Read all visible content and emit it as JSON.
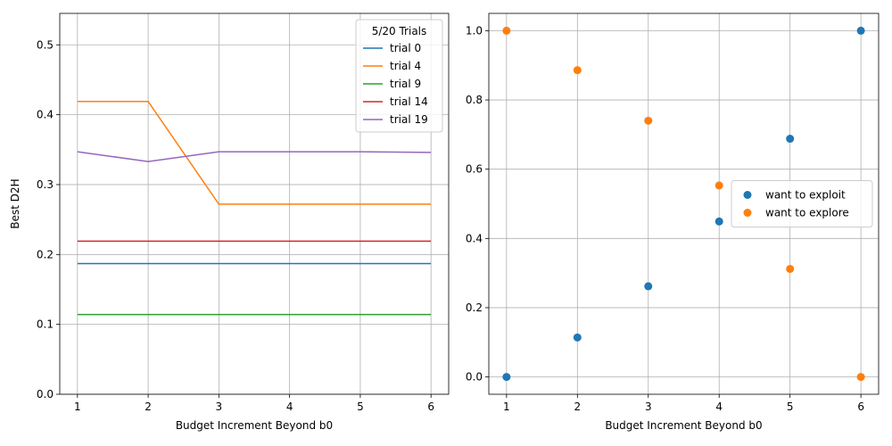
{
  "chart_data": [
    {
      "type": "line",
      "xlabel": "Budget Increment Beyond b0",
      "ylabel": "Best D2H",
      "x": [
        1,
        2,
        3,
        4,
        5,
        6
      ],
      "xticks": [
        "1",
        "2",
        "3",
        "4",
        "5",
        "6"
      ],
      "xlim": [
        0.75,
        6.25
      ],
      "ylim": [
        0,
        0.545
      ],
      "yticks": [
        "0.0",
        "0.1",
        "0.2",
        "0.3",
        "0.4",
        "0.5"
      ],
      "grid": true,
      "legend": {
        "title": "5/20 Trials",
        "placement": "top-right"
      },
      "series": [
        {
          "name": "trial 0",
          "color": "#1f77b4",
          "values": [
            0.187,
            0.187,
            0.187,
            0.187,
            0.187,
            0.187
          ]
        },
        {
          "name": "trial 4",
          "color": "#ff7f0e",
          "values": [
            0.419,
            0.419,
            0.272,
            0.272,
            0.272,
            0.272
          ]
        },
        {
          "name": "trial 9",
          "color": "#2ca02c",
          "values": [
            0.114,
            0.114,
            0.114,
            0.114,
            0.114,
            0.114
          ]
        },
        {
          "name": "trial 14",
          "color": "#d62728",
          "values": [
            0.219,
            0.219,
            0.219,
            0.219,
            0.219,
            0.219
          ]
        },
        {
          "name": "trial 19",
          "color": "#9467bd",
          "values": [
            0.347,
            0.333,
            0.347,
            0.347,
            0.347,
            0.346
          ]
        }
      ]
    },
    {
      "type": "scatter",
      "xlabel": "Budget Increment Beyond b0",
      "ylabel": "",
      "xticks": [
        "1",
        "2",
        "3",
        "4",
        "5",
        "6"
      ],
      "xlim": [
        0.75,
        6.25
      ],
      "ylim": [
        -0.05,
        1.05
      ],
      "yticks": [
        "0.0",
        "0.2",
        "0.4",
        "0.6",
        "0.8",
        "1.0"
      ],
      "grid": true,
      "legend": {
        "title": "",
        "placement": "center-right"
      },
      "series": [
        {
          "name": "want to exploit",
          "color": "#1f77b4",
          "x": [
            1,
            2,
            3,
            4,
            5,
            6
          ],
          "values": [
            0.0,
            0.114,
            0.262,
            0.449,
            0.688,
            1.0
          ]
        },
        {
          "name": "want to explore",
          "color": "#ff7f0e",
          "x": [
            1,
            2,
            3,
            4,
            5,
            6
          ],
          "values": [
            1.0,
            0.886,
            0.74,
            0.553,
            0.312,
            0.0
          ]
        }
      ]
    }
  ]
}
